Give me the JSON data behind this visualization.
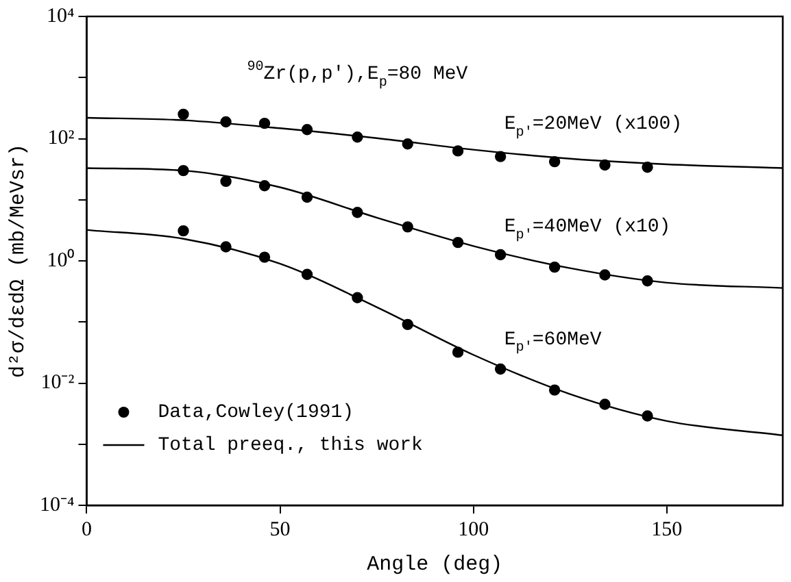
{
  "chart_data": {
    "type": "scatter",
    "title": "$^{90}$Zr(p,p'),E$_{p}$=80 MeV",
    "xlabel": "Angle (deg)",
    "ylabel": "d²σ/dεdΩ (mb/MeVsr)",
    "log": "y",
    "xlim": [
      0,
      180
    ],
    "xticks": [
      0,
      50,
      100,
      150
    ],
    "ylim": [
      0.0001,
      10000
    ],
    "yticks": [
      {
        "value": 0.0001,
        "label": "10⁻⁴"
      },
      {
        "value": 0.001,
        "label": null
      },
      {
        "value": 0.01,
        "label": "10⁻²"
      },
      {
        "value": 0.1,
        "label": null
      },
      {
        "value": 1,
        "label": "10⁰"
      },
      {
        "value": 10,
        "label": null
      },
      {
        "value": 100,
        "label": "10²"
      },
      {
        "value": 1000,
        "label": null
      },
      {
        "value": 10000,
        "label": "10⁴"
      }
    ],
    "grid": false,
    "legend": "bottom left",
    "marker": "circle",
    "series": [
      {
        "name": "Data,Cowley(1991)",
        "color": "#000000",
        "x": [
          25,
          36,
          46,
          57,
          70,
          83,
          96,
          107,
          121,
          134,
          145
        ],
        "values": [
          251,
          188,
          178,
          141,
          106,
          82,
          63,
          51,
          42,
          37,
          34
        ]
      },
      {
        "color": "#000000",
        "x": [
          25,
          36,
          46,
          57,
          70,
          83,
          96,
          107,
          121,
          134,
          145
        ],
        "values": [
          30,
          20,
          17,
          11,
          6.2,
          3.6,
          2.0,
          1.26,
          0.79,
          0.59,
          0.47
        ]
      },
      {
        "color": "#000000",
        "x": [
          25,
          36,
          46,
          57,
          70,
          83,
          96,
          107,
          121,
          134,
          145
        ],
        "values": [
          3.1,
          1.7,
          1.15,
          0.6,
          0.25,
          0.091,
          0.032,
          0.017,
          0.0077,
          0.0045,
          0.0029
        ]
      },
      {
        "name": "Total preeq., this work",
        "type": "line",
        "marker": "none",
        "line_style": "solid",
        "color": "#000000",
        "x": [
          0,
          25,
          50,
          75,
          100,
          125,
          150,
          180
        ],
        "values": [
          220,
          200,
          148,
          102,
          66,
          47,
          38,
          33
        ]
      },
      {
        "type": "line",
        "marker": "none",
        "line_style": "solid",
        "color": "#000000",
        "x": [
          0,
          25,
          50,
          75,
          100,
          125,
          150,
          180
        ],
        "values": [
          33,
          30,
          16,
          5.1,
          1.75,
          0.76,
          0.44,
          0.36
        ]
      },
      {
        "type": "line",
        "marker": "none",
        "line_style": "solid",
        "color": "#000000",
        "x": [
          0,
          25,
          50,
          75,
          100,
          125,
          150,
          180
        ],
        "values": [
          3.2,
          2.3,
          0.9,
          0.175,
          0.029,
          0.0066,
          0.0024,
          0.0014
        ]
      }
    ],
    "annotations": [
      "E$_{p'}$=20MeV (x100)",
      "E$_{p'}$=40MeV (x10)",
      "E$_{p'}$=60MeV"
    ]
  }
}
